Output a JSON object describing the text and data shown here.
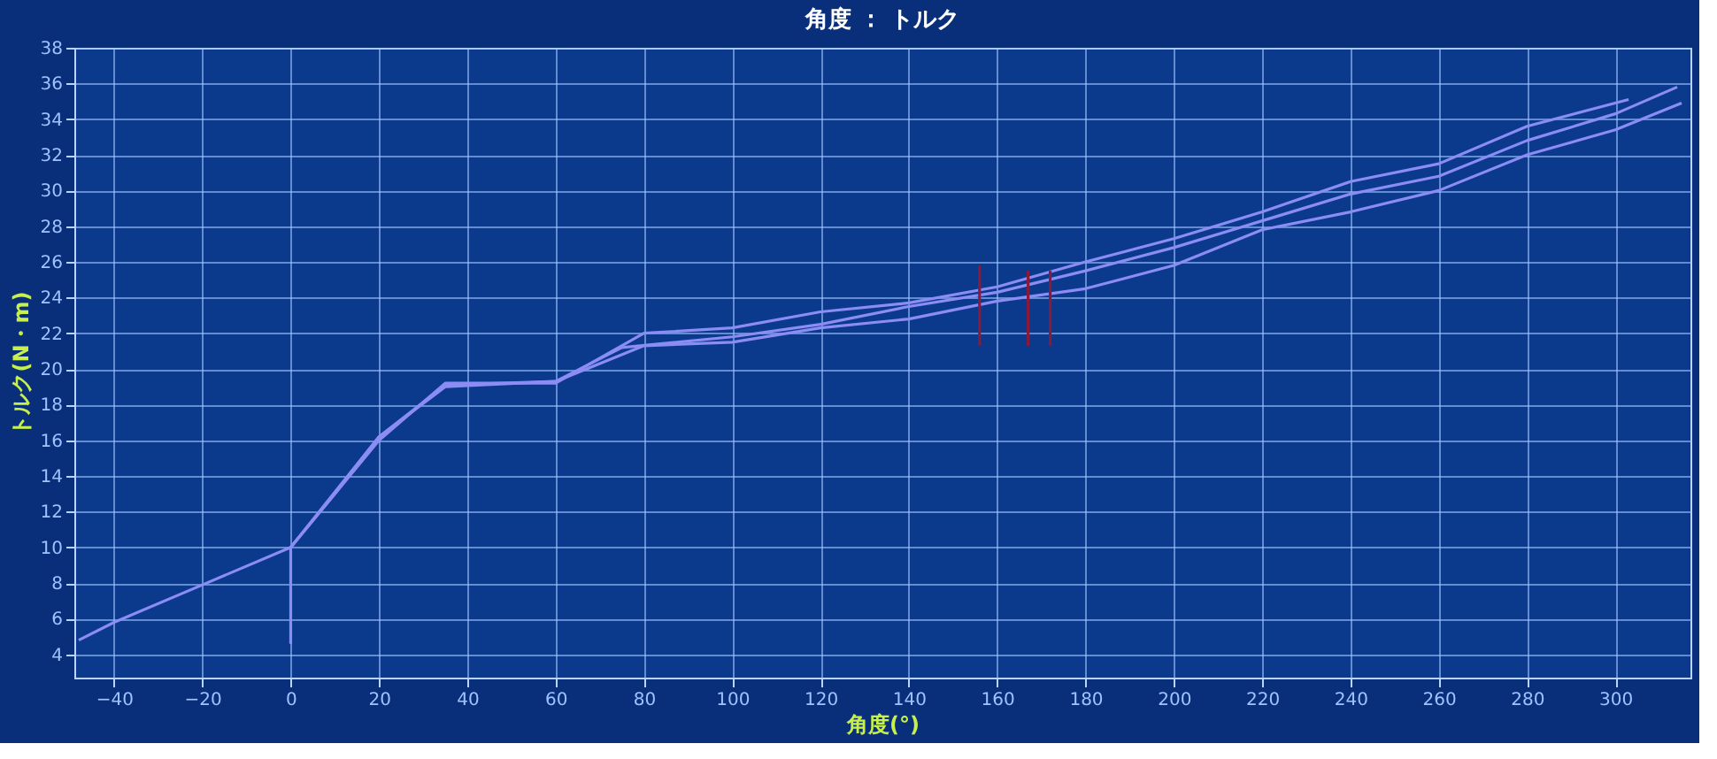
{
  "chart_data": {
    "type": "line",
    "title": "角度 ： トルク",
    "xlabel": "角度(°)",
    "ylabel": "トルク(N・m)",
    "xlim": [
      -49,
      317
    ],
    "ylim": [
      2.7,
      38
    ],
    "xticks": [
      -40,
      -20,
      0,
      20,
      40,
      60,
      80,
      100,
      120,
      140,
      160,
      180,
      200,
      220,
      240,
      260,
      280,
      300
    ],
    "yticks": [
      4,
      6,
      8,
      10,
      12,
      14,
      16,
      18,
      20,
      22,
      24,
      26,
      28,
      30,
      32,
      34,
      36,
      38
    ],
    "grid": true,
    "marker": "none",
    "line_style": "solid",
    "series": [
      {
        "color": "#8c8cf5",
        "x": [
          -48,
          -40,
          -20,
          0,
          10,
          20,
          35,
          60,
          75,
          100,
          120,
          140,
          160,
          180,
          200,
          220,
          240,
          260,
          280,
          300,
          314
        ],
        "values": [
          4.8,
          5.8,
          7.9,
          10,
          13,
          16.2,
          19.1,
          19.3,
          21.2,
          21.8,
          22.5,
          23.5,
          24.3,
          25.5,
          26.8,
          28.3,
          29.8,
          30.8,
          32.8,
          34.3,
          35.8
        ]
      },
      {
        "color": "#8c8cf5",
        "x": [
          0,
          0,
          20,
          35,
          60,
          80,
          100,
          120,
          140,
          160,
          180,
          200,
          220,
          240,
          260,
          280,
          303
        ],
        "values": [
          4.6,
          10,
          16,
          19.2,
          19.2,
          22,
          22.3,
          23.2,
          23.7,
          24.6,
          26,
          27.3,
          28.8,
          30.5,
          31.5,
          33.6,
          35.1
        ]
      },
      {
        "color": "#8c8cf5",
        "x": [
          0,
          20,
          35,
          60,
          80,
          100,
          120,
          140,
          160,
          180,
          200,
          220,
          240,
          260,
          280,
          300,
          315
        ],
        "values": [
          10,
          16.2,
          19,
          19.3,
          21.3,
          21.5,
          22.3,
          22.8,
          23.8,
          24.5,
          25.8,
          27.8,
          28.8,
          30,
          32,
          33.4,
          34.9
        ]
      },
      {
        "color": "#8b1a3a",
        "x": [
          156,
          156
        ],
        "values": [
          21.3,
          25.8
        ]
      },
      {
        "color": "#8b1a3a",
        "x": [
          167,
          167
        ],
        "values": [
          21.3,
          25.5
        ]
      },
      {
        "color": "#8b1a3a",
        "x": [
          172,
          172
        ],
        "values": [
          21.3,
          25.5
        ]
      }
    ]
  }
}
